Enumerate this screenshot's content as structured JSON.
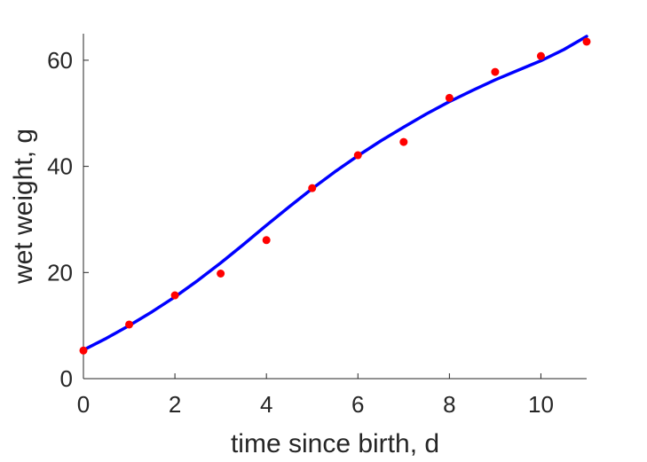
{
  "chart_data": {
    "type": "scatter",
    "title": "",
    "xlabel": "time since birth, d",
    "ylabel": "wet weight, g",
    "xlim": [
      0,
      11
    ],
    "ylim": [
      0,
      65
    ],
    "xticks": [
      0,
      2,
      4,
      6,
      8,
      10
    ],
    "yticks": [
      0,
      20,
      40,
      60
    ],
    "grid": false,
    "colors": {
      "points": "#ff0000",
      "line": "#0000ff",
      "axes": "#262626"
    },
    "series": [
      {
        "kind": "scatter",
        "x": [
          0,
          1,
          2,
          3,
          4,
          5,
          6,
          7,
          8,
          9,
          10,
          11
        ],
        "y": [
          5.3,
          10.2,
          15.7,
          19.8,
          26.1,
          35.9,
          42.1,
          44.6,
          52.9,
          57.8,
          60.8,
          63.5
        ]
      },
      {
        "kind": "line",
        "x": [
          0,
          0.5,
          1,
          1.5,
          2,
          2.5,
          3,
          3.5,
          4,
          4.5,
          5,
          5.5,
          6,
          6.5,
          7,
          7.5,
          8,
          8.5,
          9,
          9.5,
          10,
          10.5,
          11
        ],
        "y": [
          5.4,
          7.6,
          10.0,
          12.6,
          15.4,
          18.5,
          21.8,
          25.3,
          28.9,
          32.4,
          35.8,
          39.0,
          42.0,
          44.8,
          47.4,
          49.9,
          52.2,
          54.3,
          56.3,
          58.1,
          59.9,
          62.0,
          64.5
        ]
      }
    ]
  }
}
